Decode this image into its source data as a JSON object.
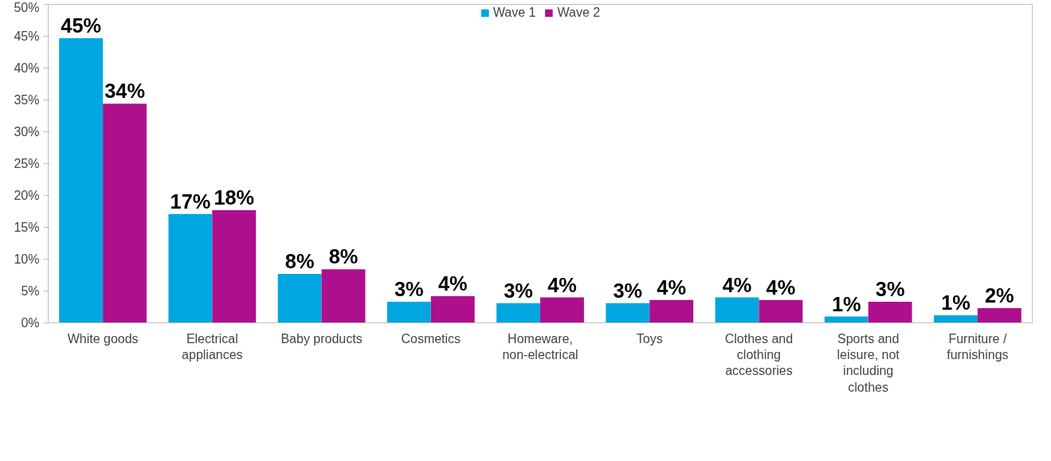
{
  "chart_data": {
    "type": "bar",
    "categories": [
      "White goods",
      "Electrical appliances",
      "Baby products",
      "Cosmetics",
      "Homeware, non-electrical",
      "Toys",
      "Clothes and clothing accessories",
      "Sports and leisure, not including clothes",
      "Furniture / furnishings"
    ],
    "series": [
      {
        "name": "Wave 1",
        "color": "#00a6e0",
        "values": [
          44.7,
          17.1,
          7.7,
          3.3,
          3.1,
          3.1,
          4.0,
          1.0,
          1.2
        ],
        "value_labels": [
          "45%",
          "17%",
          "8%",
          "3%",
          "3%",
          "3%",
          "4%",
          "1%",
          "1%"
        ]
      },
      {
        "name": "Wave 2",
        "color": "#ae0f8c",
        "values": [
          34.4,
          17.7,
          8.4,
          4.2,
          4.0,
          3.6,
          3.6,
          3.3,
          2.3
        ],
        "value_labels": [
          "34%",
          "18%",
          "8%",
          "4%",
          "4%",
          "4%",
          "4%",
          "3%",
          "2%"
        ]
      }
    ],
    "ylim": [
      0,
      50
    ],
    "yticks": [
      {
        "value": 0,
        "label": "0%"
      },
      {
        "value": 5,
        "label": "5%"
      },
      {
        "value": 10,
        "label": "10%"
      },
      {
        "value": 15,
        "label": "15%"
      },
      {
        "value": 20,
        "label": "20%"
      },
      {
        "value": 25,
        "label": "25%"
      },
      {
        "value": 30,
        "label": "30%"
      },
      {
        "value": 35,
        "label": "35%"
      },
      {
        "value": 40,
        "label": "40%"
      },
      {
        "value": 45,
        "label": "45%"
      },
      {
        "value": 50,
        "label": "50%"
      }
    ],
    "grid": false,
    "legend": "top"
  }
}
